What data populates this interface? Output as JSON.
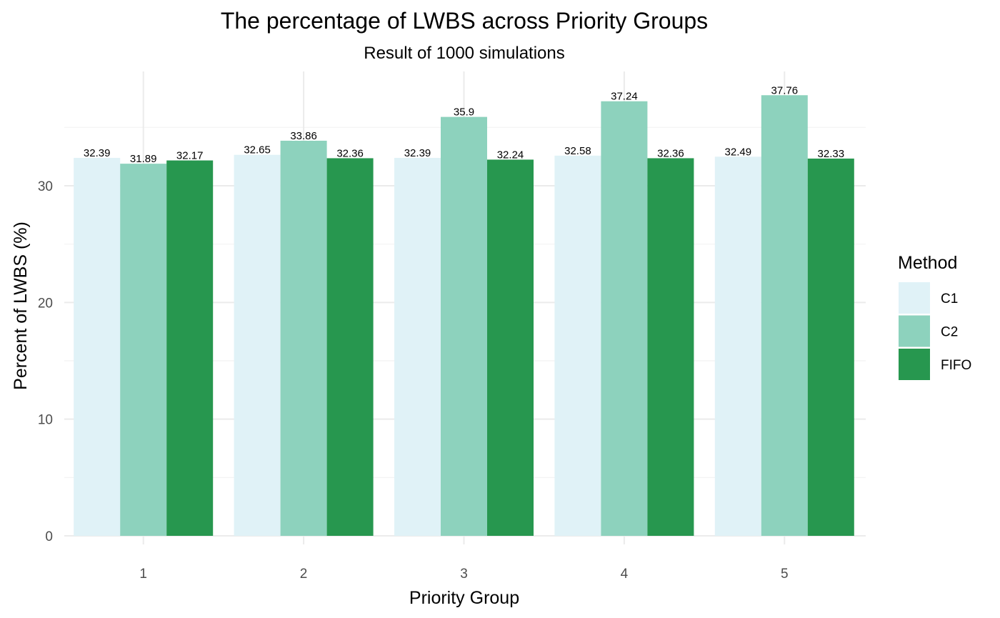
{
  "chart_data": {
    "type": "bar",
    "title": "The percentage of LWBS across Priority Groups",
    "subtitle": "Result of 1000 simulations",
    "xlabel": "Priority Group",
    "ylabel": "Percent of LWBS (%)",
    "categories": [
      "1",
      "2",
      "3",
      "4",
      "5"
    ],
    "ylim": [
      0,
      40
    ],
    "y_ticks": [
      "0",
      "10",
      "20",
      "30"
    ],
    "grid": true,
    "legend": {
      "title": "Method",
      "position": "right"
    },
    "series": [
      {
        "name": "C1",
        "color": "#e0f2f7",
        "values": [
          32.39,
          32.65,
          32.39,
          32.58,
          32.49
        ],
        "labels": [
          "32.39",
          "32.65",
          "32.39",
          "32.58",
          "32.49"
        ]
      },
      {
        "name": "C2",
        "color": "#8dd2bd",
        "values": [
          31.89,
          33.86,
          35.9,
          37.24,
          37.76
        ],
        "labels": [
          "31.89",
          "33.86",
          "35.9",
          "37.24",
          "37.76"
        ]
      },
      {
        "name": "FIFO",
        "color": "#27974f",
        "values": [
          32.17,
          32.36,
          32.24,
          32.36,
          32.33
        ],
        "labels": [
          "32.17",
          "32.36",
          "32.24",
          "32.36",
          "32.33"
        ]
      }
    ]
  }
}
